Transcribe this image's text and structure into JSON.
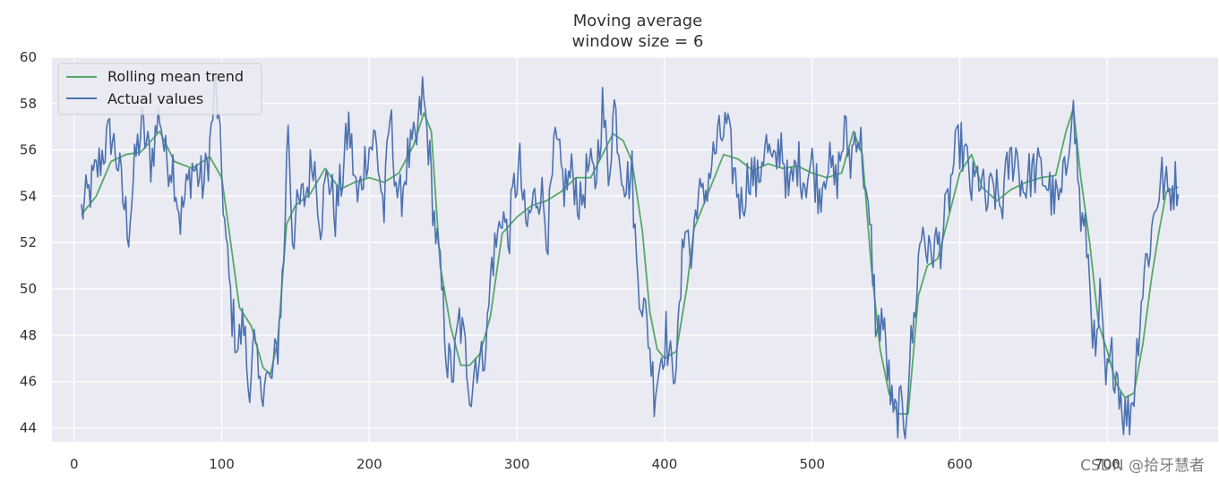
{
  "chart_data": {
    "type": "line",
    "title": "Moving average",
    "subtitle": "window size = 6",
    "xlabel": "",
    "ylabel": "",
    "xlim": [
      -15,
      775
    ],
    "ylim": [
      43.4,
      60
    ],
    "x_ticks": [
      0,
      100,
      200,
      300,
      400,
      500,
      600,
      700
    ],
    "y_ticks": [
      44,
      46,
      48,
      50,
      52,
      54,
      56,
      58,
      60
    ],
    "grid": true,
    "legend_position": "top-left",
    "colors": {
      "background": "#eaeaf2",
      "grid": "#ffffff",
      "rolling": "#55a868",
      "actual": "#4c72b0"
    },
    "series": [
      {
        "name": "Rolling mean trend",
        "anchors": [
          [
            5,
            53.2
          ],
          [
            15,
            54.0
          ],
          [
            25,
            55.5
          ],
          [
            35,
            55.8
          ],
          [
            45,
            55.9
          ],
          [
            58,
            56.8
          ],
          [
            68,
            55.5
          ],
          [
            80,
            55.2
          ],
          [
            92,
            55.7
          ],
          [
            100,
            54.8
          ],
          [
            105,
            52.5
          ],
          [
            112,
            49.2
          ],
          [
            120,
            48.4
          ],
          [
            128,
            46.6
          ],
          [
            133,
            46.3
          ],
          [
            138,
            47.8
          ],
          [
            144,
            52.8
          ],
          [
            150,
            53.6
          ],
          [
            160,
            54.1
          ],
          [
            170,
            55.2
          ],
          [
            180,
            54.3
          ],
          [
            190,
            54.6
          ],
          [
            200,
            54.8
          ],
          [
            210,
            54.6
          ],
          [
            220,
            55.0
          ],
          [
            230,
            56.2
          ],
          [
            237,
            57.6
          ],
          [
            242,
            56.8
          ],
          [
            248,
            51.0
          ],
          [
            255,
            48.4
          ],
          [
            262,
            46.7
          ],
          [
            268,
            46.7
          ],
          [
            275,
            47.2
          ],
          [
            282,
            48.8
          ],
          [
            290,
            52.4
          ],
          [
            300,
            53.1
          ],
          [
            310,
            53.6
          ],
          [
            320,
            53.8
          ],
          [
            330,
            54.2
          ],
          [
            340,
            54.8
          ],
          [
            350,
            54.8
          ],
          [
            358,
            55.8
          ],
          [
            365,
            56.7
          ],
          [
            372,
            56.4
          ],
          [
            378,
            55.5
          ],
          [
            385,
            52.5
          ],
          [
            390,
            49.0
          ],
          [
            395,
            47.4
          ],
          [
            400,
            47.0
          ],
          [
            408,
            47.3
          ],
          [
            415,
            50.0
          ],
          [
            420,
            52.6
          ],
          [
            430,
            54.2
          ],
          [
            440,
            55.8
          ],
          [
            450,
            55.6
          ],
          [
            460,
            55.1
          ],
          [
            470,
            55.4
          ],
          [
            480,
            55.2
          ],
          [
            490,
            55.3
          ],
          [
            500,
            55.0
          ],
          [
            510,
            54.8
          ],
          [
            520,
            55.0
          ],
          [
            528,
            56.8
          ],
          [
            534,
            55.8
          ],
          [
            540,
            51.0
          ],
          [
            546,
            47.4
          ],
          [
            552,
            45.5
          ],
          [
            558,
            44.6
          ],
          [
            565,
            44.6
          ],
          [
            572,
            49.7
          ],
          [
            578,
            51.0
          ],
          [
            585,
            51.3
          ],
          [
            592,
            53.0
          ],
          [
            600,
            55.0
          ],
          [
            608,
            55.8
          ],
          [
            615,
            54.4
          ],
          [
            625,
            53.8
          ],
          [
            635,
            54.3
          ],
          [
            645,
            54.6
          ],
          [
            655,
            54.8
          ],
          [
            665,
            54.9
          ],
          [
            672,
            56.8
          ],
          [
            677,
            57.8
          ],
          [
            682,
            54.8
          ],
          [
            688,
            52.0
          ],
          [
            694,
            48.5
          ],
          [
            700,
            47.3
          ],
          [
            706,
            45.9
          ],
          [
            712,
            45.3
          ],
          [
            718,
            45.5
          ],
          [
            724,
            47.6
          ],
          [
            730,
            50.5
          ],
          [
            735,
            52.5
          ],
          [
            740,
            54.2
          ],
          [
            748,
            54.4
          ]
        ]
      },
      {
        "name": "Actual values",
        "anchors": [
          [
            5,
            53.3
          ],
          [
            10,
            54.1
          ],
          [
            15,
            55.0
          ],
          [
            20,
            56.0
          ],
          [
            25,
            56.7
          ],
          [
            30,
            55.4
          ],
          [
            33,
            53.9
          ],
          [
            37,
            52.6
          ],
          [
            42,
            55.8
          ],
          [
            46,
            57.0
          ],
          [
            52,
            55.5
          ],
          [
            58,
            57.7
          ],
          [
            62,
            55.6
          ],
          [
            67,
            55.4
          ],
          [
            72,
            53.0
          ],
          [
            80,
            55.3
          ],
          [
            88,
            54.5
          ],
          [
            92,
            56.2
          ],
          [
            96,
            58.8
          ],
          [
            100,
            55.0
          ],
          [
            103,
            51.8
          ],
          [
            107,
            48.9
          ],
          [
            111,
            47.5
          ],
          [
            115,
            48.6
          ],
          [
            118,
            45.8
          ],
          [
            122,
            47.5
          ],
          [
            126,
            45.4
          ],
          [
            129,
            46.4
          ],
          [
            133,
            45.8
          ],
          [
            138,
            47.6
          ],
          [
            142,
            51.3
          ],
          [
            145,
            57.4
          ],
          [
            148,
            52.3
          ],
          [
            152,
            53.5
          ],
          [
            157,
            54.1
          ],
          [
            162,
            55.8
          ],
          [
            167,
            53.0
          ],
          [
            172,
            55.1
          ],
          [
            177,
            53.2
          ],
          [
            182,
            55.0
          ],
          [
            186,
            57.1
          ],
          [
            192,
            53.7
          ],
          [
            198,
            55.9
          ],
          [
            204,
            56.5
          ],
          [
            210,
            53.3
          ],
          [
            214,
            57.5
          ],
          [
            220,
            53.5
          ],
          [
            226,
            55.6
          ],
          [
            232,
            56.3
          ],
          [
            236,
            58.5
          ],
          [
            240,
            56.3
          ],
          [
            244,
            53.0
          ],
          [
            247,
            51.3
          ],
          [
            250,
            49.2
          ],
          [
            253,
            46.8
          ],
          [
            257,
            46.4
          ],
          [
            261,
            48.7
          ],
          [
            265,
            47.3
          ],
          [
            269,
            45.5
          ],
          [
            272,
            47.0
          ],
          [
            276,
            46.8
          ],
          [
            280,
            48.3
          ],
          [
            283,
            51.2
          ],
          [
            287,
            52.2
          ],
          [
            290,
            53.5
          ],
          [
            294,
            52.0
          ],
          [
            298,
            54.3
          ],
          [
            302,
            55.3
          ],
          [
            306,
            52.5
          ],
          [
            311,
            53.7
          ],
          [
            316,
            54.4
          ],
          [
            321,
            52.4
          ],
          [
            326,
            56.3
          ],
          [
            332,
            54.4
          ],
          [
            338,
            55.0
          ],
          [
            343,
            53.5
          ],
          [
            348,
            55.2
          ],
          [
            353,
            54.6
          ],
          [
            358,
            57.9
          ],
          [
            362,
            55.0
          ],
          [
            366,
            58.0
          ],
          [
            370,
            55.7
          ],
          [
            374,
            54.6
          ],
          [
            378,
            55.0
          ],
          [
            381,
            51.0
          ],
          [
            385,
            49.5
          ],
          [
            389,
            48.1
          ],
          [
            393,
            45.6
          ],
          [
            397,
            46.9
          ],
          [
            401,
            48.1
          ],
          [
            405,
            46.3
          ],
          [
            409,
            47.6
          ],
          [
            414,
            53.4
          ],
          [
            418,
            51.0
          ],
          [
            422,
            54.1
          ],
          [
            426,
            53.7
          ],
          [
            431,
            55.2
          ],
          [
            436,
            56.3
          ],
          [
            442,
            57.0
          ],
          [
            447,
            55.0
          ],
          [
            452,
            53.6
          ],
          [
            458,
            55.2
          ],
          [
            463,
            54.5
          ],
          [
            468,
            56.4
          ],
          [
            474,
            55.0
          ],
          [
            479,
            56.5
          ],
          [
            484,
            54.0
          ],
          [
            490,
            55.5
          ],
          [
            495,
            54.7
          ],
          [
            500,
            55.4
          ],
          [
            505,
            54.1
          ],
          [
            510,
            55.6
          ],
          [
            516,
            54.5
          ],
          [
            522,
            56.8
          ],
          [
            526,
            55.5
          ],
          [
            530,
            57.0
          ],
          [
            534,
            55.9
          ],
          [
            537,
            53.4
          ],
          [
            540,
            52.0
          ],
          [
            544,
            47.8
          ],
          [
            547,
            49.0
          ],
          [
            551,
            46.7
          ],
          [
            555,
            44.3
          ],
          [
            559,
            44.8
          ],
          [
            563,
            44.3
          ],
          [
            566,
            47.0
          ],
          [
            569,
            48.5
          ],
          [
            572,
            51.2
          ],
          [
            575,
            52.8
          ],
          [
            579,
            51.3
          ],
          [
            582,
            51.8
          ],
          [
            587,
            52.0
          ],
          [
            592,
            53.6
          ],
          [
            596,
            55.5
          ],
          [
            600,
            56.3
          ],
          [
            604,
            55.6
          ],
          [
            608,
            54.3
          ],
          [
            613,
            54.9
          ],
          [
            618,
            53.6
          ],
          [
            623,
            54.4
          ],
          [
            628,
            53.5
          ],
          [
            633,
            55.3
          ],
          [
            638,
            55.9
          ],
          [
            643,
            54.3
          ],
          [
            648,
            55.0
          ],
          [
            654,
            55.1
          ],
          [
            659,
            54.6
          ],
          [
            663,
            53.9
          ],
          [
            668,
            53.7
          ],
          [
            672,
            55.2
          ],
          [
            676,
            58.2
          ],
          [
            679,
            56.0
          ],
          [
            682,
            53.0
          ],
          [
            686,
            52.0
          ],
          [
            689,
            49.5
          ],
          [
            692,
            46.6
          ],
          [
            695,
            49.5
          ],
          [
            699,
            45.8
          ],
          [
            703,
            47.0
          ],
          [
            707,
            46.3
          ],
          [
            711,
            44.6
          ],
          [
            715,
            44.6
          ],
          [
            718,
            45.7
          ],
          [
            721,
            48.2
          ],
          [
            725,
            50.8
          ],
          [
            729,
            52.0
          ],
          [
            733,
            53.8
          ],
          [
            737,
            54.8
          ],
          [
            741,
            54.1
          ],
          [
            745,
            54.5
          ],
          [
            748,
            54.6
          ]
        ]
      }
    ],
    "watermark": "CSDN @拾牙慧者"
  }
}
